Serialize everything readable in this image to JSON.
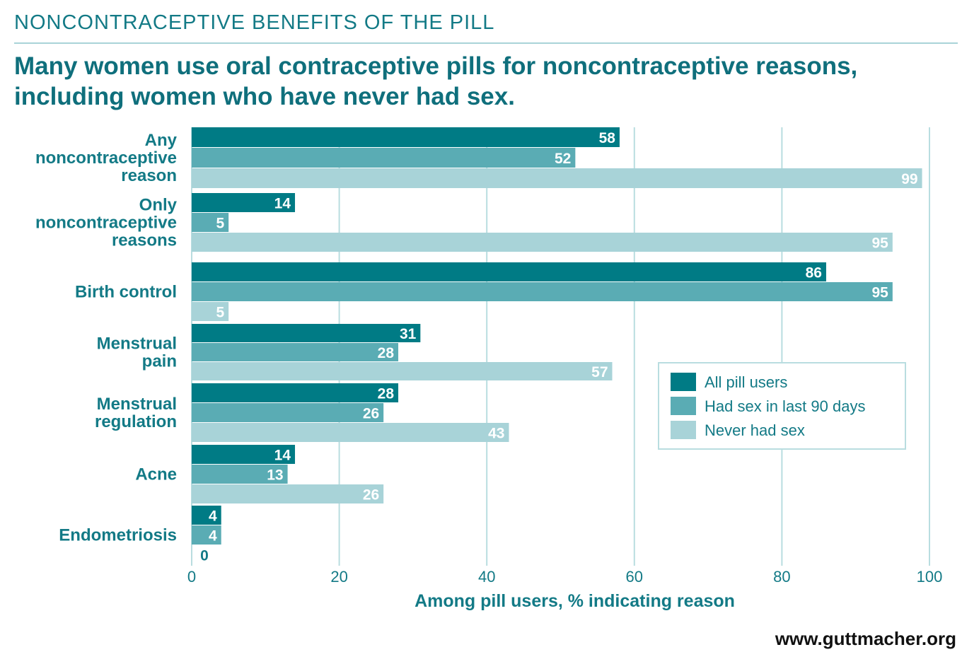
{
  "kicker": "NONCONTRACEPTIVE BENEFITS OF THE PILL",
  "headline": "Many women use oral contraceptive pills for noncontraceptive reasons, including women who have never had sex.",
  "source": "www.guttmacher.org",
  "colors": {
    "all": "#007b85",
    "had_sex": "#5aacb4",
    "never": "#a8d3d8",
    "grid": "#b9dde0",
    "text": "#137a86"
  },
  "chart_data": {
    "type": "bar",
    "orientation": "horizontal",
    "title": "Many women use oral contraceptive pills for noncontraceptive reasons, including women who have never had sex.",
    "xlabel": "Among pill users, % indicating reason",
    "ylabel": "",
    "xlim": [
      0,
      100
    ],
    "xticks": [
      0,
      20,
      40,
      60,
      80,
      100
    ],
    "grid": true,
    "legend_position": "middle-right",
    "categories": [
      [
        "Any",
        "noncontraceptive",
        "reason"
      ],
      [
        "Only",
        "noncontraceptive",
        "reasons"
      ],
      [
        "Birth control"
      ],
      [
        "Menstrual",
        "pain"
      ],
      [
        "Menstrual",
        "regulation"
      ],
      [
        "Acne"
      ],
      [
        "Endometriosis"
      ]
    ],
    "series": [
      {
        "name": "All pill users",
        "values": [
          58,
          14,
          86,
          31,
          28,
          14,
          4
        ]
      },
      {
        "name": "Had sex in last 90 days",
        "values": [
          52,
          5,
          95,
          28,
          26,
          13,
          4
        ]
      },
      {
        "name": "Never had sex",
        "values": [
          99,
          95,
          5,
          57,
          43,
          26,
          0
        ]
      }
    ]
  }
}
